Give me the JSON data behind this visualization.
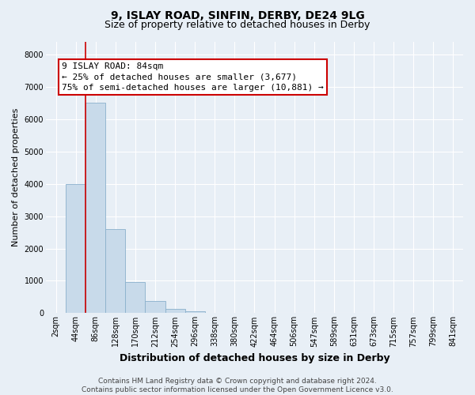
{
  "title1": "9, ISLAY ROAD, SINFIN, DERBY, DE24 9LG",
  "title2": "Size of property relative to detached houses in Derby",
  "xlabel": "Distribution of detached houses by size in Derby",
  "ylabel": "Number of detached properties",
  "categories": [
    "2sqm",
    "44sqm",
    "86sqm",
    "128sqm",
    "170sqm",
    "212sqm",
    "254sqm",
    "296sqm",
    "338sqm",
    "380sqm",
    "422sqm",
    "464sqm",
    "506sqm",
    "547sqm",
    "589sqm",
    "631sqm",
    "673sqm",
    "715sqm",
    "757sqm",
    "799sqm",
    "841sqm"
  ],
  "values": [
    0,
    4000,
    6500,
    2600,
    950,
    380,
    130,
    60,
    0,
    0,
    0,
    0,
    0,
    0,
    0,
    0,
    0,
    0,
    0,
    0,
    0
  ],
  "bar_color": "#c8daea",
  "bar_edge_color": "#8ab0cc",
  "vline_color": "#cc0000",
  "vline_x": 1.5,
  "annotation_line1": "9 ISLAY ROAD: 84sqm",
  "annotation_line2": "← 25% of detached houses are smaller (3,677)",
  "annotation_line3": "75% of semi-detached houses are larger (10,881) →",
  "annotation_box_facecolor": "#ffffff",
  "annotation_box_edgecolor": "#cc0000",
  "ylim": [
    0,
    8400
  ],
  "yticks": [
    0,
    1000,
    2000,
    3000,
    4000,
    5000,
    6000,
    7000,
    8000
  ],
  "background_color": "#e8eff6",
  "grid_color": "#ffffff",
  "footer_text": "Contains HM Land Registry data © Crown copyright and database right 2024.\nContains public sector information licensed under the Open Government Licence v3.0.",
  "title1_fontsize": 10,
  "title2_fontsize": 9,
  "xlabel_fontsize": 9,
  "ylabel_fontsize": 8,
  "tick_fontsize": 7,
  "annotation_fontsize": 8,
  "footer_fontsize": 6.5
}
